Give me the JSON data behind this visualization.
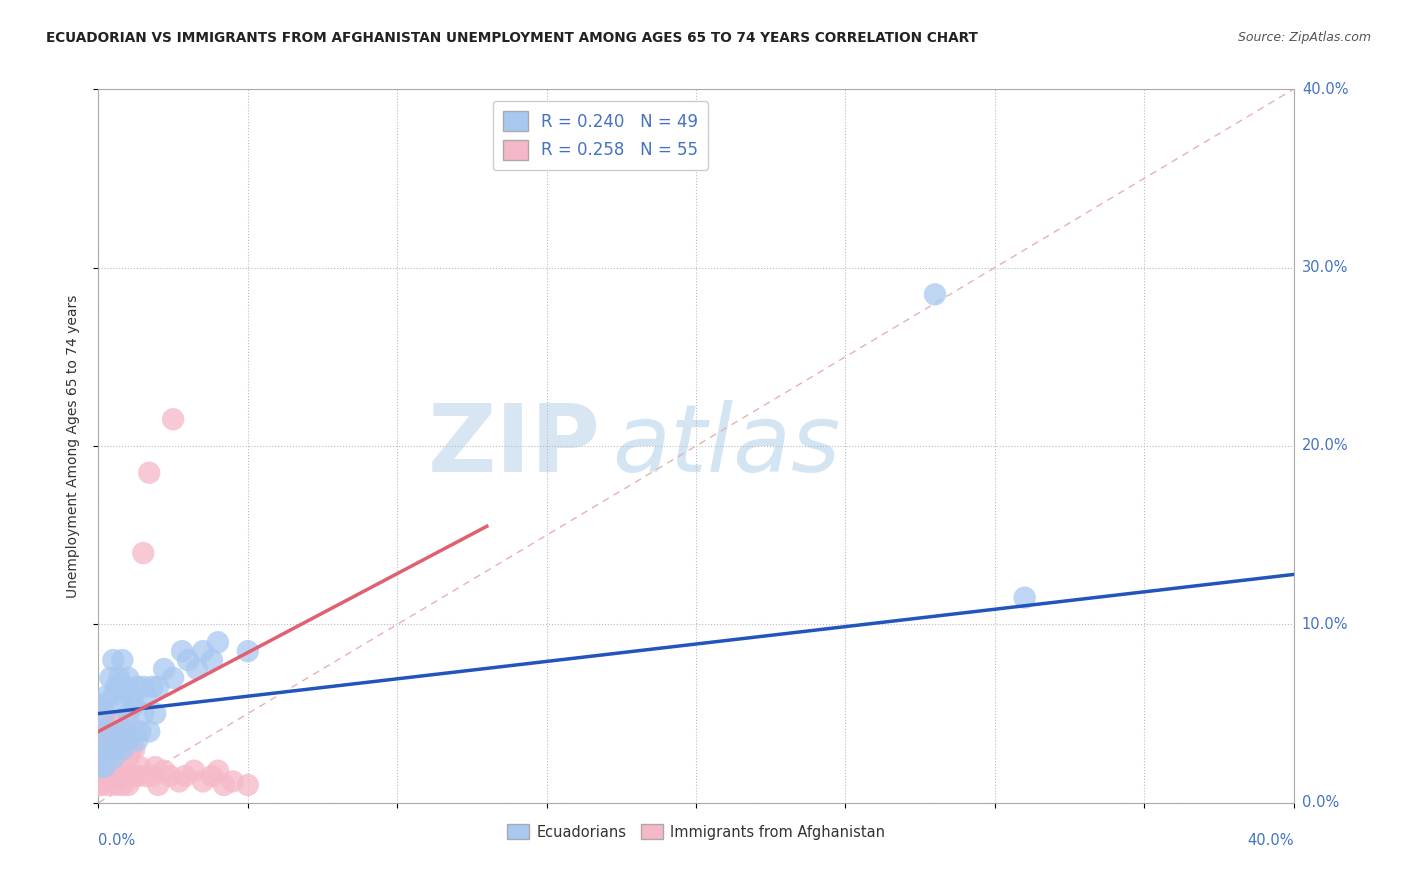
{
  "title": "ECUADORIAN VS IMMIGRANTS FROM AFGHANISTAN UNEMPLOYMENT AMONG AGES 65 TO 74 YEARS CORRELATION CHART",
  "source": "Source: ZipAtlas.com",
  "ylabel": "Unemployment Among Ages 65 to 74 years",
  "legend_blue_r": "R = 0.240",
  "legend_blue_n": "N = 49",
  "legend_pink_r": "R = 0.258",
  "legend_pink_n": "N = 55",
  "blue_color": "#A8C8F0",
  "pink_color": "#F5B8C8",
  "blue_line_color": "#2255BB",
  "pink_line_color": "#E06070",
  "diagonal_color": "#E8B0B8",
  "watermark_zip": "ZIP",
  "watermark_atlas": "atlas",
  "xlim": [
    0.0,
    0.4
  ],
  "ylim": [
    0.0,
    0.4
  ],
  "blue_scatter_x": [
    0.0,
    0.0,
    0.001,
    0.001,
    0.002,
    0.002,
    0.003,
    0.003,
    0.004,
    0.004,
    0.005,
    0.005,
    0.005,
    0.006,
    0.006,
    0.007,
    0.007,
    0.008,
    0.008,
    0.008,
    0.009,
    0.009,
    0.01,
    0.01,
    0.01,
    0.011,
    0.012,
    0.012,
    0.013,
    0.013,
    0.014,
    0.015,
    0.015,
    0.016,
    0.017,
    0.018,
    0.019,
    0.02,
    0.022,
    0.025,
    0.028,
    0.03,
    0.033,
    0.035,
    0.038,
    0.04,
    0.05,
    0.28,
    0.31
  ],
  "blue_scatter_y": [
    0.02,
    0.04,
    0.03,
    0.055,
    0.02,
    0.05,
    0.03,
    0.06,
    0.04,
    0.07,
    0.025,
    0.06,
    0.08,
    0.03,
    0.065,
    0.04,
    0.07,
    0.03,
    0.055,
    0.08,
    0.04,
    0.065,
    0.035,
    0.05,
    0.07,
    0.06,
    0.04,
    0.055,
    0.065,
    0.035,
    0.04,
    0.05,
    0.065,
    0.06,
    0.04,
    0.065,
    0.05,
    0.065,
    0.075,
    0.07,
    0.085,
    0.08,
    0.075,
    0.085,
    0.08,
    0.09,
    0.085,
    0.285,
    0.115
  ],
  "pink_scatter_x": [
    0.0,
    0.0,
    0.0,
    0.0,
    0.0,
    0.001,
    0.001,
    0.001,
    0.002,
    0.002,
    0.002,
    0.003,
    0.003,
    0.003,
    0.004,
    0.004,
    0.005,
    0.005,
    0.005,
    0.006,
    0.006,
    0.007,
    0.007,
    0.007,
    0.008,
    0.008,
    0.008,
    0.009,
    0.009,
    0.01,
    0.01,
    0.01,
    0.011,
    0.012,
    0.012,
    0.013,
    0.014,
    0.015,
    0.016,
    0.017,
    0.018,
    0.019,
    0.02,
    0.022,
    0.024,
    0.025,
    0.027,
    0.029,
    0.032,
    0.035,
    0.038,
    0.04,
    0.042,
    0.045,
    0.05
  ],
  "pink_scatter_y": [
    0.01,
    0.02,
    0.03,
    0.04,
    0.055,
    0.01,
    0.025,
    0.04,
    0.015,
    0.03,
    0.05,
    0.01,
    0.025,
    0.04,
    0.015,
    0.035,
    0.015,
    0.03,
    0.045,
    0.01,
    0.03,
    0.015,
    0.028,
    0.045,
    0.01,
    0.025,
    0.04,
    0.015,
    0.03,
    0.01,
    0.025,
    0.045,
    0.03,
    0.015,
    0.03,
    0.015,
    0.02,
    0.14,
    0.015,
    0.185,
    0.015,
    0.02,
    0.01,
    0.018,
    0.015,
    0.215,
    0.012,
    0.015,
    0.018,
    0.012,
    0.015,
    0.018,
    0.01,
    0.012,
    0.01
  ],
  "blue_line_x": [
    0.0,
    0.4
  ],
  "blue_line_y": [
    0.05,
    0.128
  ],
  "pink_line_x": [
    0.0,
    0.13
  ],
  "pink_line_y": [
    0.04,
    0.155
  ],
  "ytick_labels": [
    "0.0%",
    "10.0%",
    "20.0%",
    "30.0%",
    "40.0%"
  ],
  "ytick_positions": [
    0.0,
    0.1,
    0.2,
    0.3,
    0.4
  ]
}
